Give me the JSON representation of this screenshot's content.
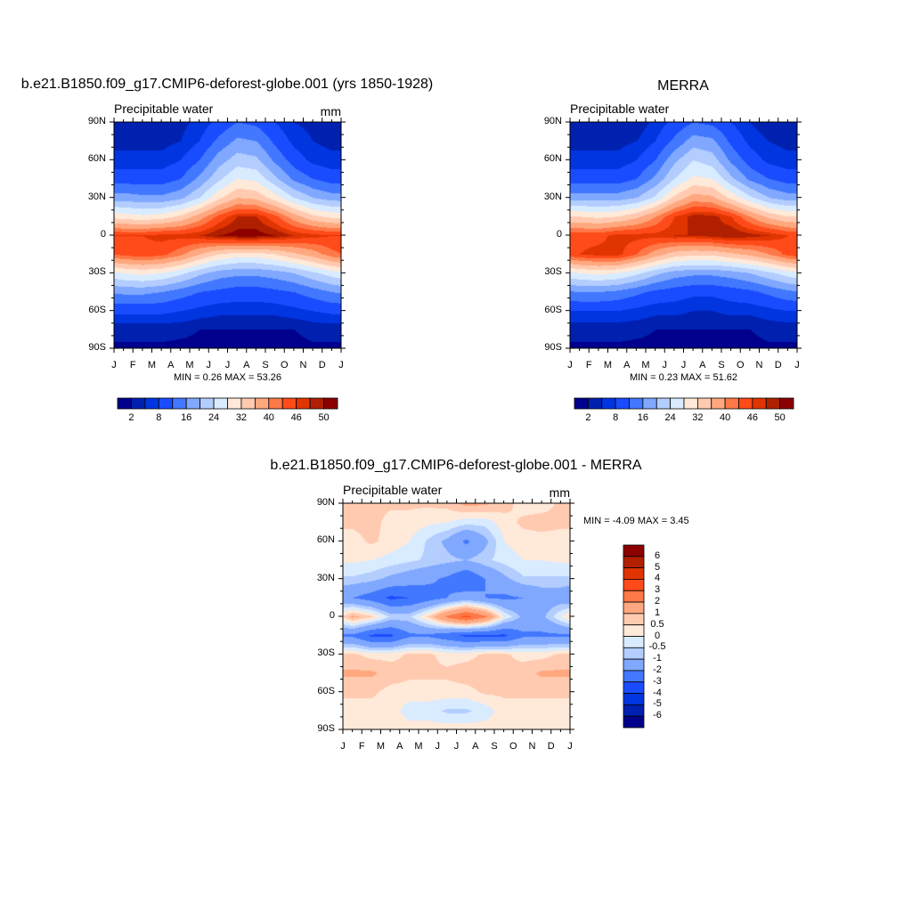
{
  "chart_data": [
    {
      "type": "heatmap",
      "title": "b.e21.B1850.f09_g17.CMIP6-deforest-globe.001 (yrs 1850-1928)",
      "subtitle": "Precipitable water",
      "units": "mm",
      "x_ticks": [
        "J",
        "F",
        "M",
        "A",
        "M",
        "J",
        "J",
        "A",
        "S",
        "O",
        "N",
        "D",
        "J"
      ],
      "y_ticks": [
        "90N",
        "60N",
        "30N",
        "0",
        "30S",
        "60S",
        "90S"
      ],
      "stats": "MIN =   0.26 MAX =  53.26",
      "colorbar_labels": [
        "2",
        "8",
        "16",
        "24",
        "32",
        "40",
        "46",
        "50"
      ],
      "levels": [
        2,
        5,
        8,
        12,
        16,
        20,
        24,
        28,
        32,
        36,
        40,
        43,
        46,
        48,
        50
      ],
      "colors": [
        "#00008c",
        "#0020b0",
        "#0035e0",
        "#1a4cff",
        "#4277ff",
        "#80a8ff",
        "#b3cdff",
        "#d9ebff",
        "#ffe9d9",
        "#ffcab0",
        "#ffa87f",
        "#ff7847",
        "#ff4a1a",
        "#e03500",
        "#b02000",
        "#8c0000"
      ],
      "lat": [
        90,
        75,
        60,
        45,
        30,
        15,
        0,
        -15,
        -30,
        -45,
        -60,
        -75,
        -90
      ],
      "values": [
        [
          3,
          3,
          3,
          4,
          6,
          9,
          12,
          11,
          8,
          5,
          4,
          3
        ],
        [
          4,
          4,
          4,
          5,
          8,
          13,
          17,
          16,
          11,
          7,
          5,
          4
        ],
        [
          6,
          6,
          6,
          8,
          12,
          18,
          22,
          21,
          15,
          10,
          7,
          6
        ],
        [
          10,
          10,
          10,
          12,
          17,
          23,
          28,
          27,
          21,
          15,
          12,
          10
        ],
        [
          18,
          17,
          17,
          19,
          24,
          31,
          36,
          35,
          30,
          24,
          20,
          18
        ],
        [
          30,
          29,
          30,
          33,
          38,
          44,
          48,
          48,
          44,
          38,
          33,
          31
        ],
        [
          46,
          46,
          47,
          47,
          48,
          50,
          51,
          51,
          50,
          48,
          47,
          46
        ],
        [
          44,
          45,
          44,
          41,
          36,
          32,
          30,
          30,
          32,
          35,
          38,
          42
        ],
        [
          28,
          29,
          28,
          25,
          21,
          18,
          17,
          17,
          18,
          20,
          23,
          26
        ],
        [
          17,
          17,
          16,
          14,
          12,
          11,
          10,
          10,
          11,
          12,
          14,
          16
        ],
        [
          9,
          9,
          9,
          8,
          7,
          6,
          6,
          6,
          6,
          7,
          8,
          9
        ],
        [
          3,
          3,
          3,
          3,
          2,
          2,
          2,
          2,
          2,
          2,
          3,
          3
        ],
        [
          1.5,
          1.5,
          1.5,
          1,
          1,
          1,
          1,
          1,
          1,
          1,
          1.5,
          1.5
        ]
      ]
    },
    {
      "type": "heatmap",
      "title": "MERRA",
      "subtitle": "Precipitable water",
      "units": "",
      "x_ticks": [
        "J",
        "F",
        "M",
        "A",
        "M",
        "J",
        "J",
        "A",
        "S",
        "O",
        "N",
        "D",
        "J"
      ],
      "y_ticks": [
        "90N",
        "60N",
        "30N",
        "0",
        "30S",
        "60S",
        "90S"
      ],
      "stats": "MIN =   0.23 MAX =  51.62",
      "colorbar_labels": [
        "2",
        "8",
        "16",
        "24",
        "32",
        "40",
        "46",
        "50"
      ],
      "levels": [
        2,
        5,
        8,
        12,
        16,
        20,
        24,
        28,
        32,
        36,
        40,
        43,
        46,
        48,
        50
      ],
      "colors": [
        "#00008c",
        "#0020b0",
        "#0035e0",
        "#1a4cff",
        "#4277ff",
        "#80a8ff",
        "#b3cdff",
        "#d9ebff",
        "#ffe9d9",
        "#ffcab0",
        "#ffa87f",
        "#ff7847",
        "#ff4a1a",
        "#e03500",
        "#b02000",
        "#8c0000"
      ],
      "lat": [
        90,
        75,
        60,
        45,
        30,
        15,
        0,
        -15,
        -30,
        -45,
        -60,
        -75,
        -90
      ],
      "values": [
        [
          2,
          2,
          2,
          3,
          6,
          9,
          12,
          11,
          8,
          5,
          3,
          2
        ],
        [
          4,
          4,
          4,
          5,
          8,
          13,
          18,
          17,
          11,
          7,
          5,
          4
        ],
        [
          6,
          6,
          6,
          8,
          12,
          19,
          24,
          22,
          15,
          10,
          7,
          6
        ],
        [
          10,
          10,
          10,
          12,
          17,
          24,
          29,
          28,
          21,
          15,
          12,
          10
        ],
        [
          18,
          18,
          18,
          20,
          25,
          33,
          38,
          37,
          31,
          25,
          20,
          18
        ],
        [
          32,
          31,
          32,
          35,
          40,
          46,
          49,
          49,
          46,
          40,
          35,
          32
        ],
        [
          45,
          45,
          47,
          47,
          47,
          48,
          48,
          49,
          50,
          49,
          48,
          46
        ],
        [
          46,
          47,
          47,
          43,
          38,
          34,
          33,
          33,
          35,
          37,
          40,
          44
        ],
        [
          28,
          29,
          28,
          25,
          21,
          18,
          17,
          17,
          18,
          20,
          23,
          26
        ],
        [
          16,
          16,
          15,
          13,
          11,
          10,
          9,
          9,
          10,
          11,
          13,
          15
        ],
        [
          8,
          8,
          8,
          7,
          6,
          6,
          5,
          5,
          6,
          6,
          7,
          8
        ],
        [
          3,
          3,
          3,
          3,
          2,
          2,
          2,
          2,
          2,
          2,
          3,
          3
        ],
        [
          1.5,
          1.5,
          1.5,
          1,
          1,
          1,
          1,
          1,
          1,
          1,
          1.5,
          1.5
        ]
      ]
    },
    {
      "type": "heatmap",
      "title": "b.e21.B1850.f09_g17.CMIP6-deforest-globe.001 - MERRA",
      "subtitle": "Precipitable water",
      "units": "mm",
      "x_ticks": [
        "J",
        "F",
        "M",
        "A",
        "M",
        "J",
        "J",
        "A",
        "S",
        "O",
        "N",
        "D",
        "J"
      ],
      "y_ticks": [
        "90N",
        "60N",
        "30N",
        "0",
        "30S",
        "60S",
        "90S"
      ],
      "stats": "MIN =  -4.09 MAX =   3.45",
      "colorbar_labels": [
        "6",
        "5",
        "4",
        "3",
        "2",
        "1",
        "0.5",
        "0",
        "-0.5",
        "-1",
        "-2",
        "-3",
        "-4",
        "-5",
        "-6"
      ],
      "levels": [
        -6,
        -5,
        -4,
        -3,
        -2,
        -1,
        -0.5,
        0,
        0.5,
        1,
        2,
        3,
        4,
        5,
        6
      ],
      "colors": [
        "#00008c",
        "#0020b0",
        "#0035e0",
        "#1a4cff",
        "#4277ff",
        "#80a8ff",
        "#b3cdff",
        "#d9ebff",
        "#ffe9d9",
        "#ffcab0",
        "#ffa87f",
        "#ff7847",
        "#ff4a1a",
        "#e03500",
        "#b02000",
        "#8c0000"
      ],
      "lat": [
        90,
        75,
        60,
        45,
        30,
        15,
        0,
        -15,
        -30,
        -45,
        -60,
        -75,
        -90
      ],
      "values": [
        [
          0.7,
          0.7,
          0.6,
          0.6,
          0.6,
          0.7,
          1.2,
          1.1,
          0.7,
          0.3,
          0.3,
          0.6
        ],
        [
          0.6,
          0.7,
          0.3,
          0.3,
          0.1,
          0,
          -0.3,
          -0.3,
          0.3,
          0.6,
          0.7,
          0.6
        ],
        [
          0.3,
          0.6,
          0.3,
          0,
          -0.6,
          -1.2,
          -2.2,
          -1.2,
          0,
          0.3,
          0.3,
          0.3
        ],
        [
          0.1,
          0,
          -0.2,
          -0.4,
          -0.6,
          -0.8,
          -1,
          -0.6,
          -0.3,
          0,
          0,
          0.1
        ],
        [
          -0.6,
          -0.8,
          -1.2,
          -1.5,
          -1.8,
          -2.2,
          -3,
          -2,
          -1.2,
          -0.6,
          -0.6,
          -0.6
        ],
        [
          -2,
          -2.5,
          -3.2,
          -3,
          -2.5,
          -2,
          -1.5,
          -2,
          -2.2,
          -2,
          -1.5,
          -1.5
        ],
        [
          1.2,
          0.6,
          -0.6,
          -0.6,
          0.6,
          2.2,
          3.3,
          2.2,
          0,
          -1.2,
          -1.2,
          0
        ],
        [
          -2.2,
          -3.2,
          -3.2,
          -2.2,
          -2.2,
          -2.7,
          -3.2,
          -3.2,
          -3.2,
          -2.2,
          -2.2,
          -2.2
        ],
        [
          0.6,
          0.3,
          0.3,
          0.6,
          0.6,
          0.3,
          0.3,
          0.6,
          0.6,
          0.3,
          0.3,
          0.6
        ],
        [
          1.1,
          1.1,
          0.8,
          0.6,
          0.6,
          0.6,
          0.8,
          0.8,
          0.6,
          0.8,
          1.1,
          1.1
        ],
        [
          0.6,
          0.6,
          0.3,
          0.3,
          0.3,
          0.3,
          0.3,
          0.6,
          0.6,
          0.6,
          0.6,
          0.6
        ],
        [
          0.3,
          0.3,
          0.3,
          -0.3,
          -0.3,
          -0.6,
          -0.6,
          -0.3,
          0.3,
          0.3,
          0.3,
          0.3
        ],
        [
          0.3,
          0.3,
          0.3,
          0.3,
          0.3,
          0.3,
          0.3,
          0.3,
          0.3,
          0.3,
          0.3,
          0.3
        ]
      ]
    }
  ]
}
